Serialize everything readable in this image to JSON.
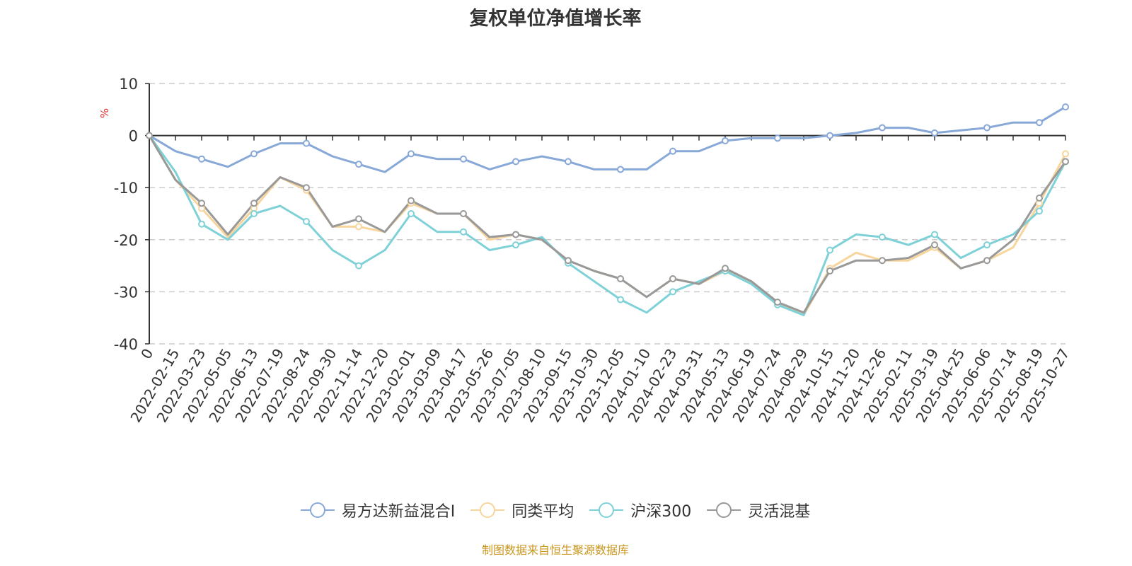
{
  "chart_data": {
    "type": "line",
    "title": "复权单位净值增长率",
    "ylabel": "%",
    "xlabel": "",
    "ylim": [
      -40,
      10
    ],
    "yticks": [
      10,
      0,
      -10,
      -20,
      -30,
      -40
    ],
    "grid": true,
    "legend_position": "bottom",
    "categories": [
      "0",
      "2022-02-15",
      "2022-03-23",
      "2022-05-05",
      "2022-06-13",
      "2022-07-19",
      "2022-08-24",
      "2022-09-30",
      "2022-11-14",
      "2022-12-20",
      "2023-02-01",
      "2023-03-09",
      "2023-04-17",
      "2023-05-26",
      "2023-07-05",
      "2023-08-10",
      "2023-09-15",
      "2023-10-30",
      "2023-12-05",
      "2024-01-10",
      "2024-02-23",
      "2024-03-31",
      "2024-05-13",
      "2024-06-19",
      "2024-07-24",
      "2024-08-29",
      "2024-10-15",
      "2024-11-20",
      "2024-12-26",
      "2025-02-11",
      "2025-03-19",
      "2025-04-25",
      "2025-06-06",
      "2025-07-14",
      "2025-08-19",
      "2025-10-27"
    ],
    "series": [
      {
        "name": "易方达新益混合I",
        "color": "#88a9d8",
        "values": [
          0,
          -3,
          -4.5,
          -6,
          -3.5,
          -1.5,
          -1.5,
          -4,
          -5.5,
          -7,
          -3.5,
          -4.5,
          -4.5,
          -6.5,
          -5,
          -4,
          -5,
          -6.5,
          -6.5,
          -6.5,
          -3,
          -3,
          -1,
          -0.5,
          -0.5,
          -0.5,
          0,
          0.5,
          1.5,
          1.5,
          0.5,
          1,
          1.5,
          2.5,
          2.5,
          5.5
        ]
      },
      {
        "name": "同类平均",
        "color": "#f7d59c",
        "values": [
          0,
          -8.5,
          -14,
          -19.5,
          -14,
          -8,
          -10.5,
          -17.5,
          -17.5,
          -18.5,
          -13,
          -15,
          -15,
          -20,
          -19,
          -20,
          -24,
          -26,
          -27.5,
          -31,
          -27.5,
          -28.5,
          -26,
          -28,
          -32,
          -34.5,
          -25.5,
          -22.5,
          -24,
          -24,
          -21.5,
          -25.5,
          -24,
          -21.5,
          -13,
          -3.5
        ]
      },
      {
        "name": "沪深300",
        "color": "#7fd1d8",
        "values": [
          0,
          -7,
          -17,
          -20,
          -15,
          -13.5,
          -16.5,
          -22,
          -25,
          -22,
          -15,
          -18.5,
          -18.5,
          -22,
          -21,
          -19.5,
          -24.5,
          -28,
          -31.5,
          -34,
          -30,
          -28,
          -26,
          -28.5,
          -32.5,
          -34.5,
          -22,
          -19,
          -19.5,
          -21,
          -19,
          -23.5,
          -21,
          -19,
          -14.5,
          -5
        ]
      },
      {
        "name": "灵活混基",
        "color": "#999999",
        "values": [
          0,
          -8.5,
          -13,
          -19,
          -13,
          -8,
          -10,
          -17.5,
          -16,
          -18.5,
          -12.5,
          -15,
          -15,
          -19.5,
          -19,
          -20,
          -24,
          -26,
          -27.5,
          -31,
          -27.5,
          -28.5,
          -25.5,
          -28,
          -32,
          -34,
          -26,
          -24,
          -24,
          -23.5,
          -21,
          -25.5,
          -24,
          -20,
          -12,
          -5
        ]
      }
    ]
  },
  "legend_title_hidden": "",
  "source_text": "制图数据来自恒生聚源数据库"
}
